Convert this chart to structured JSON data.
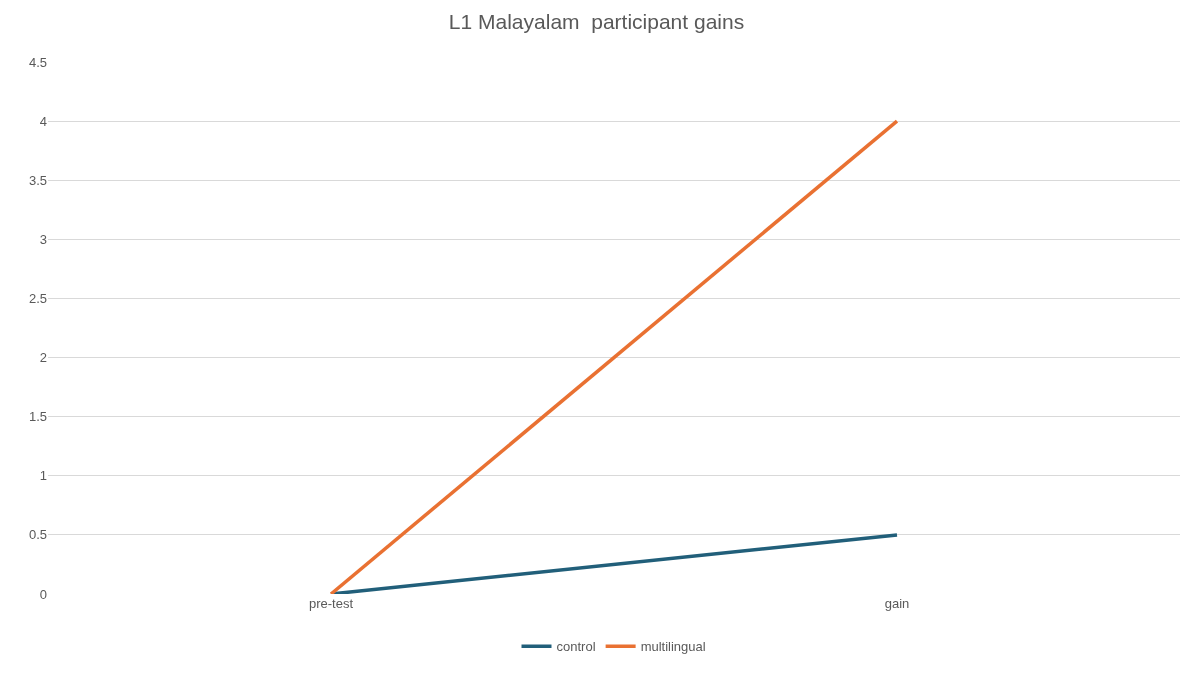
{
  "chart_data": {
    "type": "line",
    "title": "L1 Malayalam  participant gains",
    "categories": [
      "pre-test",
      "gain"
    ],
    "series": [
      {
        "name": "control",
        "color": "#215f7a",
        "values": [
          0,
          0.5
        ]
      },
      {
        "name": "multilingual",
        "color": "#e97132",
        "values": [
          0,
          4
        ]
      }
    ],
    "ylim": [
      0,
      4.5
    ],
    "yticks": [
      0,
      0.5,
      1,
      1.5,
      2,
      2.5,
      3,
      3.5,
      4,
      4.5
    ],
    "grid": "y",
    "legend": "bottom",
    "marker": "none",
    "line_style": "solid"
  }
}
